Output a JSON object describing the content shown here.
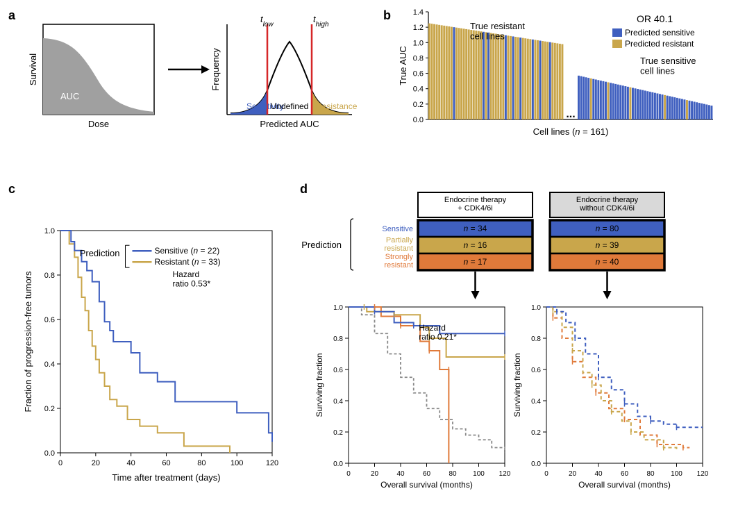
{
  "colors": {
    "blue": "#3f5fbf",
    "gold": "#c9a64b",
    "orange": "#e07a3a",
    "grey": "#bfbfbf",
    "grey_fill": "#a0a0a0",
    "black": "#000000",
    "red": "#d62728",
    "panel_box": "#000000",
    "light_grey_box": "#d9d9d9"
  },
  "labels": {
    "a": "a",
    "b": "b",
    "c": "c",
    "d": "d"
  },
  "a": {
    "left_ylabel": "Survival",
    "left_xlabel": "Dose",
    "auc_text": "AUC",
    "right_ylabel": "Frequency",
    "right_xlabel": "Predicted AUC",
    "t_low": "t",
    "t_low_sub": "low",
    "t_high": "t",
    "t_high_sub": "high",
    "sensitivity": "Sensitivity",
    "undefined": "Undefined",
    "resistance": "Resistance"
  },
  "b": {
    "or_text": "OR 40.1",
    "true_resistant": "True resistant\ncell lines",
    "true_sensitive": "True sensitive\ncell lines",
    "ylabel": "True AUC",
    "xlabel": "Cell lines (",
    "xlabel_n": "n",
    "xlabel_rest": " = 161)",
    "ymax": 1.4,
    "ystep": 0.2,
    "legend_pred_sens": "Predicted sensitive",
    "legend_pred_res": "Predicted resistant",
    "bars_left_count": 55,
    "bars_right_count": 55,
    "blue_idx_left": [
      10,
      22,
      24,
      31,
      34,
      37,
      42,
      45,
      49
    ],
    "gold_idx_right": [
      5,
      12,
      21,
      35,
      44
    ]
  },
  "c": {
    "ylabel": "Fraction of progression-free tumors",
    "xlabel": "Time after treatment (days)",
    "pred_label": "Prediction",
    "sens_label": "Sensitive (",
    "sens_n": "n",
    "sens_rest": " = 22)",
    "res_label": "Resistant (",
    "res_n": "n",
    "res_rest": " = 33)",
    "hr_label": "Hazard\nratio 0.53*",
    "xticks": [
      0,
      20,
      40,
      60,
      80,
      100,
      120
    ],
    "yticks": [
      0,
      0.2,
      0.4,
      0.6,
      0.8,
      1.0
    ],
    "sens_curve": [
      [
        0,
        1.0
      ],
      [
        4,
        1.0
      ],
      [
        6,
        0.95
      ],
      [
        8,
        0.91
      ],
      [
        12,
        0.86
      ],
      [
        15,
        0.82
      ],
      [
        18,
        0.77
      ],
      [
        22,
        0.68
      ],
      [
        25,
        0.59
      ],
      [
        28,
        0.55
      ],
      [
        30,
        0.5
      ],
      [
        35,
        0.5
      ],
      [
        40,
        0.45
      ],
      [
        45,
        0.36
      ],
      [
        55,
        0.32
      ],
      [
        65,
        0.23
      ],
      [
        90,
        0.23
      ],
      [
        100,
        0.18
      ],
      [
        118,
        0.09
      ],
      [
        120,
        0.05
      ]
    ],
    "res_curve": [
      [
        0,
        1.0
      ],
      [
        3,
        1.0
      ],
      [
        5,
        0.94
      ],
      [
        8,
        0.88
      ],
      [
        10,
        0.79
      ],
      [
        12,
        0.7
      ],
      [
        14,
        0.64
      ],
      [
        16,
        0.55
      ],
      [
        18,
        0.48
      ],
      [
        20,
        0.42
      ],
      [
        22,
        0.36
      ],
      [
        25,
        0.3
      ],
      [
        28,
        0.24
      ],
      [
        32,
        0.21
      ],
      [
        38,
        0.15
      ],
      [
        45,
        0.12
      ],
      [
        55,
        0.09
      ],
      [
        70,
        0.03
      ],
      [
        95,
        0.03
      ],
      [
        96,
        0.0
      ]
    ]
  },
  "d": {
    "box1_title": "Endocrine therapy\n+ CDK4/6i",
    "box2_title": "Endocrine therapy\nwithout CDK4/6i",
    "pred_label": "Prediction",
    "row_labels": [
      "Sensitive",
      "Partially\nresistant",
      "Strongly\nresistant"
    ],
    "row_colors": [
      "#3f5fbf",
      "#c9a64b",
      "#e07a3a"
    ],
    "ns_left": [
      "n = 34",
      "n = 16",
      "n = 17"
    ],
    "ns_right": [
      "n = 80",
      "n = 39",
      "n = 40"
    ],
    "hr_label": "Hazard\nratio 0.21*",
    "ylabel": "Surviving fraction",
    "xlabel": "Overall survival (months)",
    "xticks": [
      0,
      20,
      40,
      60,
      80,
      100,
      120
    ],
    "yticks": [
      0,
      0.2,
      0.4,
      0.6,
      0.8,
      1.0
    ],
    "left": {
      "blue": [
        [
          0,
          1.0
        ],
        [
          20,
          0.97
        ],
        [
          35,
          0.9
        ],
        [
          50,
          0.88
        ],
        [
          70,
          0.83
        ],
        [
          120,
          0.83
        ]
      ],
      "gold": [
        [
          0,
          1.0
        ],
        [
          12,
          1.0
        ],
        [
          14,
          0.97
        ],
        [
          35,
          0.95
        ],
        [
          55,
          0.87
        ],
        [
          62,
          0.8
        ],
        [
          75,
          0.68
        ],
        [
          120,
          0.68
        ]
      ],
      "orange": [
        [
          0,
          1.0
        ],
        [
          20,
          1.0
        ],
        [
          25,
          0.94
        ],
        [
          40,
          0.88
        ],
        [
          55,
          0.78
        ],
        [
          62,
          0.72
        ],
        [
          70,
          0.6
        ],
        [
          77,
          0.6
        ],
        [
          77,
          0.0
        ]
      ],
      "grey_dash": [
        [
          0,
          1.0
        ],
        [
          10,
          0.95
        ],
        [
          20,
          0.83
        ],
        [
          30,
          0.7
        ],
        [
          40,
          0.55
        ],
        [
          50,
          0.45
        ],
        [
          60,
          0.35
        ],
        [
          70,
          0.28
        ],
        [
          80,
          0.22
        ],
        [
          90,
          0.18
        ],
        [
          100,
          0.15
        ],
        [
          110,
          0.1
        ],
        [
          120,
          0.07
        ]
      ]
    },
    "right": {
      "blue": [
        [
          0,
          1.0
        ],
        [
          8,
          0.97
        ],
        [
          15,
          0.9
        ],
        [
          22,
          0.8
        ],
        [
          30,
          0.7
        ],
        [
          40,
          0.55
        ],
        [
          50,
          0.47
        ],
        [
          60,
          0.38
        ],
        [
          70,
          0.3
        ],
        [
          80,
          0.27
        ],
        [
          90,
          0.25
        ],
        [
          100,
          0.23
        ],
        [
          120,
          0.23
        ]
      ],
      "gold": [
        [
          0,
          1.0
        ],
        [
          5,
          0.97
        ],
        [
          12,
          0.87
        ],
        [
          20,
          0.72
        ],
        [
          28,
          0.58
        ],
        [
          35,
          0.5
        ],
        [
          42,
          0.4
        ],
        [
          50,
          0.33
        ],
        [
          58,
          0.27
        ],
        [
          65,
          0.2
        ],
        [
          75,
          0.15
        ],
        [
          90,
          0.1
        ],
        [
          100,
          0.08
        ]
      ],
      "orange": [
        [
          0,
          1.0
        ],
        [
          5,
          0.93
        ],
        [
          12,
          0.8
        ],
        [
          20,
          0.65
        ],
        [
          28,
          0.55
        ],
        [
          38,
          0.45
        ],
        [
          48,
          0.35
        ],
        [
          60,
          0.28
        ],
        [
          72,
          0.18
        ],
        [
          85,
          0.12
        ],
        [
          100,
          0.12
        ],
        [
          105,
          0.1
        ],
        [
          110,
          0.1
        ]
      ]
    }
  }
}
